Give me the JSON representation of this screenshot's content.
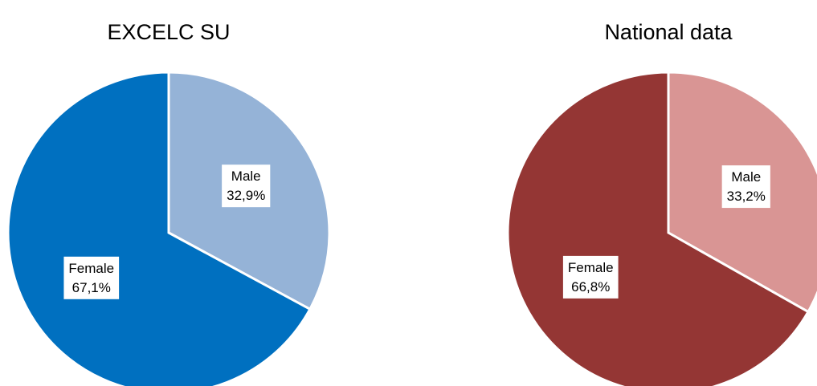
{
  "chart_data": [
    {
      "type": "pie",
      "title": "EXCELC SU",
      "categories": [
        "Male",
        "Female"
      ],
      "values": [
        32.9,
        67.1
      ],
      "value_labels": [
        "32,9%",
        "67,1%"
      ],
      "colors": [
        "#95b3d7",
        "#0070c0"
      ]
    },
    {
      "type": "pie",
      "title": "National data",
      "categories": [
        "Male",
        "Female"
      ],
      "values": [
        33.2,
        66.8
      ],
      "value_labels": [
        "33,2%",
        "66,8%"
      ],
      "colors": [
        "#d99594",
        "#943634"
      ]
    }
  ]
}
